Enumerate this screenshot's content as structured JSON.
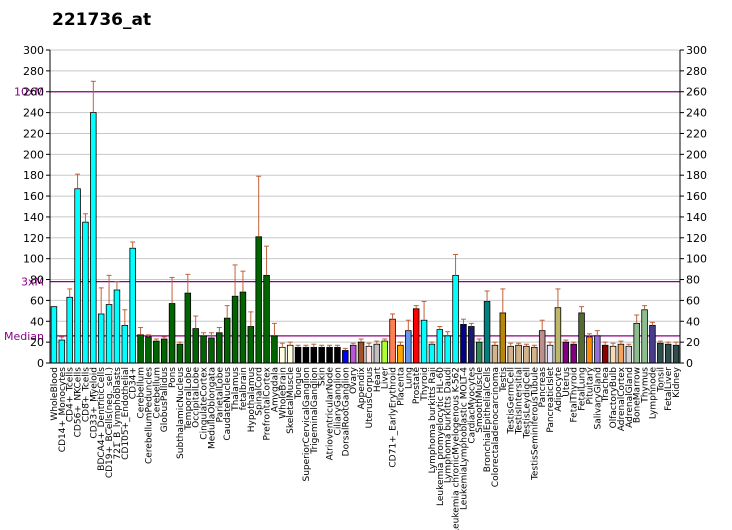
{
  "chart_data": {
    "type": "bar",
    "title": "221736_at",
    "ylim": [
      0,
      300
    ],
    "y_ticks": [
      0,
      20,
      40,
      60,
      80,
      100,
      120,
      140,
      160,
      180,
      200,
      220,
      240,
      260,
      280,
      300
    ],
    "grid": true,
    "reference_lines": [
      {
        "label": "10xM",
        "value": 260,
        "color": "#8b008b"
      },
      {
        "label": "3xM",
        "value": 78,
        "color": "#8b008b"
      },
      {
        "label": "Median",
        "value": 26,
        "color": "#8b008b"
      }
    ],
    "bars": [
      {
        "label": "WholeBlood",
        "value": 54,
        "error": 0,
        "color": "#00ffff"
      },
      {
        "label": "CD14+_Monocytes",
        "value": 22,
        "error": 3,
        "color": "#00ffff"
      },
      {
        "label": "CD4+_Tcells",
        "value": 63,
        "error": 8,
        "color": "#00ffff"
      },
      {
        "label": "CD56+_NKCells",
        "value": 167,
        "error": 14,
        "color": "#00ffff"
      },
      {
        "label": "CD8+_Tcells",
        "value": 135,
        "error": 8,
        "color": "#00ffff"
      },
      {
        "label": "CD33+_Myeloid",
        "value": 240,
        "error": 30,
        "color": "#00ffff"
      },
      {
        "label": "BDCA4+_DentriticCells",
        "value": 47,
        "error": 25,
        "color": "#00ffff"
      },
      {
        "label": "CD19+_BCells(neg._sel.)",
        "value": 56,
        "error": 28,
        "color": "#00ffff"
      },
      {
        "label": "721_B_lymphoblasts",
        "value": 70,
        "error": 8,
        "color": "#00ffff"
      },
      {
        "label": "CD105+_Endothelial",
        "value": 36,
        "error": 15,
        "color": "#00ffff"
      },
      {
        "label": "CD34+",
        "value": 110,
        "error": 6,
        "color": "#00ffff"
      },
      {
        "label": "Cerebellum",
        "value": 27,
        "error": 7,
        "color": "#006400"
      },
      {
        "label": "CerebellumPeduncles",
        "value": 25,
        "error": 2,
        "color": "#006400"
      },
      {
        "label": "Cerebellum",
        "value": 21,
        "error": 2,
        "color": "#006400"
      },
      {
        "label": "GlobusPallidus",
        "value": 23,
        "error": 2,
        "color": "#006400"
      },
      {
        "label": "Pons",
        "value": 57,
        "error": 25,
        "color": "#006400"
      },
      {
        "label": "SubthalamicNucleus",
        "value": 18,
        "error": 2,
        "color": "#006400"
      },
      {
        "label": "TemporalLobe",
        "value": 67,
        "error": 18,
        "color": "#006400"
      },
      {
        "label": "OccipitalLobe",
        "value": 33,
        "error": 12,
        "color": "#006400"
      },
      {
        "label": "CingulateCortex",
        "value": 26,
        "error": 3,
        "color": "#006400"
      },
      {
        "label": "MedullaOblongata",
        "value": 24,
        "error": 5,
        "color": "#006400"
      },
      {
        "label": "ParietalLobe",
        "value": 29,
        "error": 5,
        "color": "#006400"
      },
      {
        "label": "CaudateNucleus",
        "value": 43,
        "error": 12,
        "color": "#006400"
      },
      {
        "label": "Thalamus",
        "value": 64,
        "error": 30,
        "color": "#006400"
      },
      {
        "label": "fetalbrain",
        "value": 68,
        "error": 20,
        "color": "#006400"
      },
      {
        "label": "Hypothalamus",
        "value": 35,
        "error": 14,
        "color": "#006400"
      },
      {
        "label": "SpinalCord",
        "value": 121,
        "error": 58,
        "color": "#006400"
      },
      {
        "label": "PrefrontalCortex",
        "value": 84,
        "error": 28,
        "color": "#006400"
      },
      {
        "label": "Amygdala",
        "value": 26,
        "error": 12,
        "color": "#006400"
      },
      {
        "label": "WholeBrain",
        "value": 15,
        "error": 4,
        "color": "#ffffe0"
      },
      {
        "label": "SkeletalMuscle",
        "value": 17,
        "error": 3,
        "color": "#ffffe0"
      },
      {
        "label": "Tongue",
        "value": 15,
        "error": 2,
        "color": "#000000"
      },
      {
        "label": "SuperiorCervicalGanglion",
        "value": 15,
        "error": 2,
        "color": "#000000"
      },
      {
        "label": "TrigeminalGanglion",
        "value": 15,
        "error": 3,
        "color": "#000000"
      },
      {
        "label": "Skin",
        "value": 15,
        "error": 2,
        "color": "#000000"
      },
      {
        "label": "AtrioventricularNode",
        "value": 15,
        "error": 2,
        "color": "#000000"
      },
      {
        "label": "CiliaryGanglion",
        "value": 15,
        "error": 2,
        "color": "#000000"
      },
      {
        "label": "DorsalRootGanglion",
        "value": 12,
        "error": 2,
        "color": "#0000ff"
      },
      {
        "label": "Ovary",
        "value": 17,
        "error": 2,
        "color": "#ba55d3"
      },
      {
        "label": "Appendix",
        "value": 20,
        "error": 3,
        "color": "#a0522d"
      },
      {
        "label": "UterusCorpus",
        "value": 16,
        "error": 3,
        "color": "#ffe4e1"
      },
      {
        "label": "Heart",
        "value": 18,
        "error": 3,
        "color": "#c0c0c0"
      },
      {
        "label": "Liver",
        "value": 21,
        "error": 2,
        "color": "#adff2f"
      },
      {
        "label": "CD71+_EarlyErythroid",
        "value": 42,
        "error": 5,
        "color": "#ff7f50"
      },
      {
        "label": "Placenta",
        "value": 17,
        "error": 3,
        "color": "#ffa500"
      },
      {
        "label": "Lung",
        "value": 31,
        "error": 10,
        "color": "#6495ed"
      },
      {
        "label": "Prostate",
        "value": 52,
        "error": 3,
        "color": "#ff0000"
      },
      {
        "label": "Thyroid",
        "value": 41,
        "error": 18,
        "color": "#00ffff"
      },
      {
        "label": "Lymphoma burkitts Raji",
        "value": 18,
        "error": 2,
        "color": "#00ffff"
      },
      {
        "label": "Leukemia promyelocytic HL-60",
        "value": 32,
        "error": 3,
        "color": "#00ffff"
      },
      {
        "label": "Lymphoma burkitts Daudi",
        "value": 26,
        "error": 4,
        "color": "#00ffff"
      },
      {
        "label": "Leukemia chronicMyelogenous K-562",
        "value": 84,
        "error": 20,
        "color": "#00ffff"
      },
      {
        "label": "LeukemiaLymphoblastic MOLT-4",
        "value": 37,
        "error": 5,
        "color": "#00008b"
      },
      {
        "label": "CardiacMyocytes",
        "value": 35,
        "error": 3,
        "color": "#191970"
      },
      {
        "label": "SmoothMuscle",
        "value": 20,
        "error": 3,
        "color": "#2e8b57"
      },
      {
        "label": "BronchialEpithelialCells",
        "value": 59,
        "error": 10,
        "color": "#008080"
      },
      {
        "label": "Colorectaladenocarcinoma",
        "value": 17,
        "error": 3,
        "color": "#d2b48c"
      },
      {
        "label": "Testis",
        "value": 48,
        "error": 23,
        "color": "#b8860b"
      },
      {
        "label": "TestisGermCell",
        "value": 16,
        "error": 3,
        "color": "#d2b48c"
      },
      {
        "label": "TestisIntersitial",
        "value": 17,
        "error": 2,
        "color": "#d2b48c"
      },
      {
        "label": "TestisLeydigCell",
        "value": 16,
        "error": 2,
        "color": "#d2b48c"
      },
      {
        "label": "TestisSeminiferousTubule",
        "value": 15,
        "error": 2,
        "color": "#d2b48c"
      },
      {
        "label": "Pancreas",
        "value": 31,
        "error": 10,
        "color": "#bc8f8f"
      },
      {
        "label": "PancreaticIslet",
        "value": 17,
        "error": 3,
        "color": "#e6e6fa"
      },
      {
        "label": "Adipocyte",
        "value": 53,
        "error": 18,
        "color": "#bdb76b"
      },
      {
        "label": "Uterus",
        "value": 20,
        "error": 2,
        "color": "#800080"
      },
      {
        "label": "FetalThyroid",
        "value": 18,
        "error": 2,
        "color": "#800080"
      },
      {
        "label": "FetalLung",
        "value": 48,
        "error": 6,
        "color": "#556b2f"
      },
      {
        "label": "Pituitary",
        "value": 25,
        "error": 3,
        "color": "#ff8c00"
      },
      {
        "label": "SalivaryGland",
        "value": 26,
        "error": 5,
        "color": "#9370db"
      },
      {
        "label": "Trachea",
        "value": 17,
        "error": 3,
        "color": "#8b0000"
      },
      {
        "label": "OlfactoryBulb",
        "value": 16,
        "error": 3,
        "color": "#f5deb3"
      },
      {
        "label": "AdrenalCortex",
        "value": 18,
        "error": 3,
        "color": "#f4a460"
      },
      {
        "label": "AdrenalGland",
        "value": 16,
        "error": 2,
        "color": "#d3d3d3"
      },
      {
        "label": "BoneMarrow",
        "value": 38,
        "error": 8,
        "color": "#8fbc8f"
      },
      {
        "label": "Thymus",
        "value": 51,
        "error": 4,
        "color": "#8fbc8f"
      },
      {
        "label": "Lymphnode",
        "value": 36,
        "error": 3,
        "color": "#483d8b"
      },
      {
        "label": "Tonsil",
        "value": 19,
        "error": 2,
        "color": "#2f4f4f"
      },
      {
        "label": "FetalLiver",
        "value": 18,
        "error": 2,
        "color": "#2f4f4f"
      },
      {
        "label": "Kidney",
        "value": 17,
        "error": 3,
        "color": "#2f4f4f"
      }
    ]
  }
}
